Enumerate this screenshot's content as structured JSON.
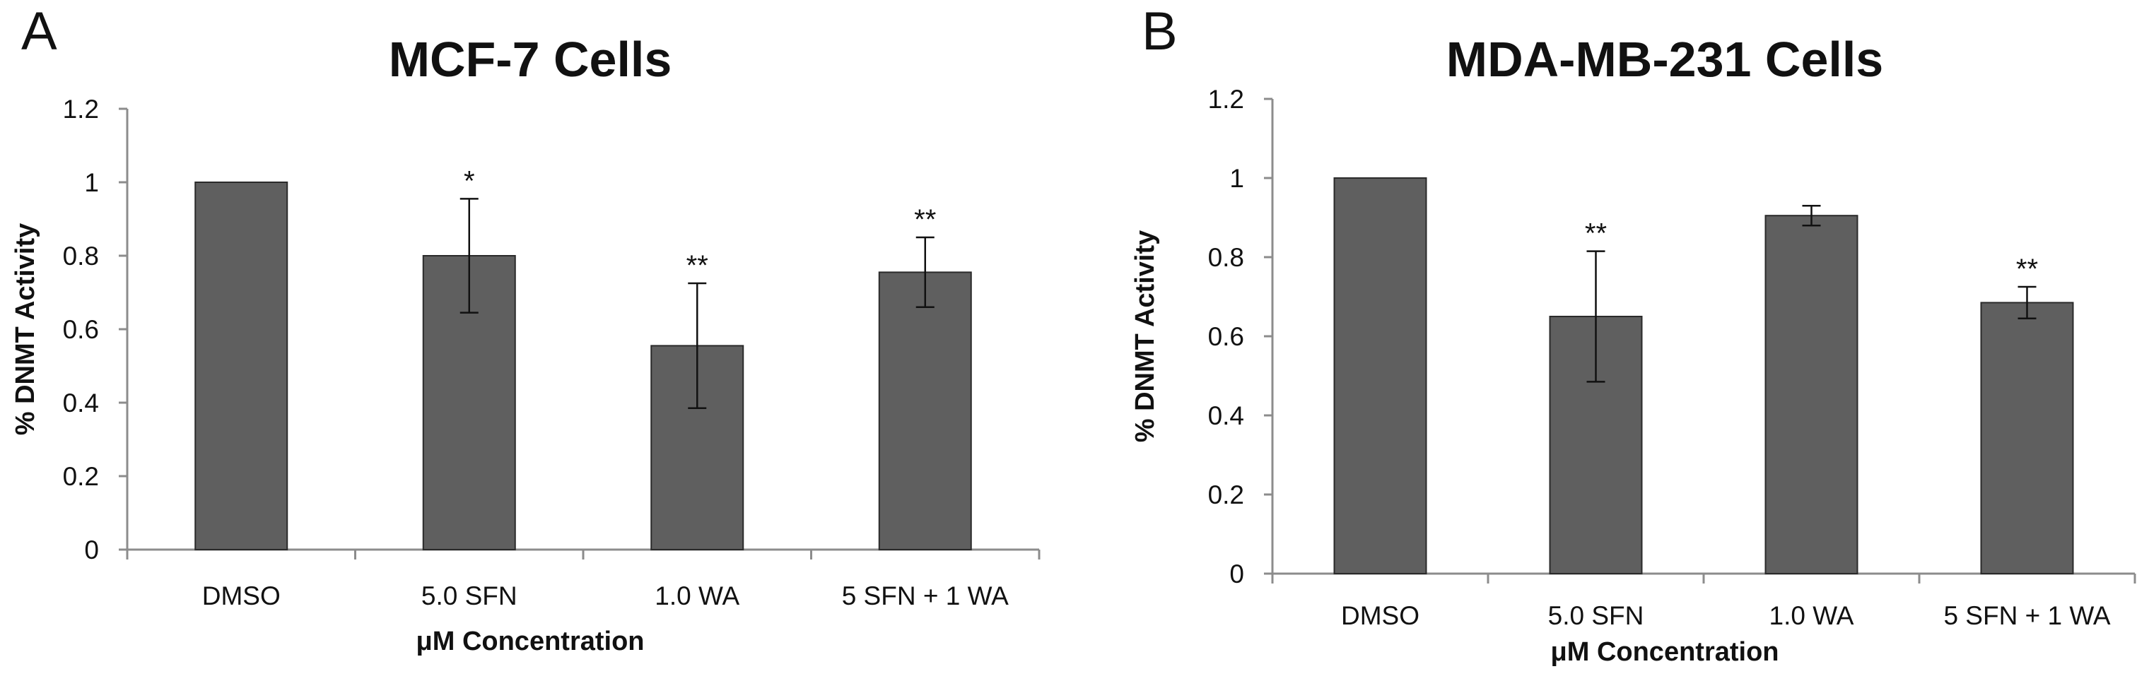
{
  "figure": {
    "background": "#ffffff",
    "bar_color": "#5f5f5f",
    "axis_color": "#8c8c8c"
  },
  "chart_data": [
    {
      "panel": "A",
      "type": "bar",
      "title": "MCF-7 Cells",
      "xlabel": "μM Concentration",
      "ylabel": "% DNMT Activity",
      "ylim": [
        0,
        1.2
      ],
      "yticks": [
        "0",
        "0.2",
        "0.4",
        "0.6",
        "0.8",
        "1",
        "1.2"
      ],
      "categories": [
        "DMSO",
        "5.0 SFN",
        "1.0 WA",
        "5 SFN + 1 WA"
      ],
      "values": [
        1.0,
        0.8,
        0.555,
        0.755
      ],
      "errors": [
        0,
        0.155,
        0.17,
        0.095
      ],
      "significance": [
        "",
        "*",
        "**",
        "**"
      ]
    },
    {
      "panel": "B",
      "type": "bar",
      "title": "MDA-MB-231 Cells",
      "xlabel": "μM Concentration",
      "ylabel": "% DNMT Activity",
      "ylim": [
        0,
        1.2
      ],
      "yticks": [
        "0",
        "0.2",
        "0.4",
        "0.6",
        "0.8",
        "1",
        "1.2"
      ],
      "categories": [
        "DMSO",
        "5.0 SFN",
        "1.0 WA",
        "5 SFN + 1 WA"
      ],
      "values": [
        1.0,
        0.65,
        0.905,
        0.685
      ],
      "errors": [
        0,
        0.165,
        0.025,
        0.04
      ],
      "significance": [
        "",
        "**",
        "",
        "**"
      ]
    }
  ]
}
